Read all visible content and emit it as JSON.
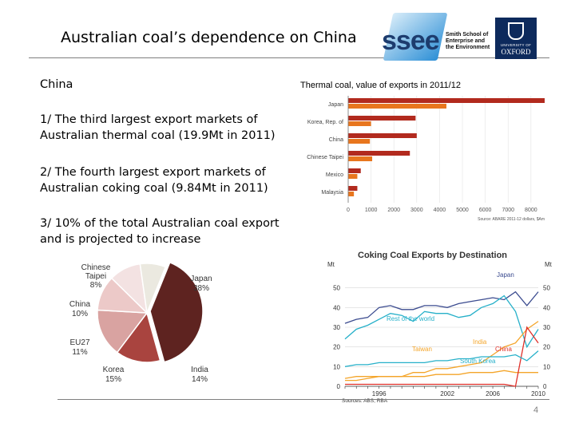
{
  "slide": {
    "title": "Australian coal’s dependence on China",
    "heading": "China",
    "point1": "1/ The third largest export markets of Australian thermal coal (19.9Mt in 2011)",
    "point2": "2/ The fourth largest export markets of Australian coking coal (9.84Mt in 2011)",
    "point3": "3/ 10% of the total Australian coal export and is projected to increase",
    "page_number": "4"
  },
  "logos": {
    "ssee_word": "ssee",
    "ssee_subtitle": "Smith School of Enterprise and the Environment",
    "oxford_top": "UNIVERSITY OF",
    "oxford_name": "OXFORD"
  },
  "colors": {
    "dark_red": "#b22a1e",
    "orange": "#e8761e",
    "maroon": "#5e2320",
    "pie_red": "#a9443f",
    "pie_pink": "#d9a3a1",
    "pie_light_pink": "#ecc9c8",
    "pie_blush": "#f3e2e2",
    "pie_cream": "#ebe9e0",
    "line_blue": "#3b4b8f",
    "line_teal": "#26b0c9",
    "line_orange": "#f4a52a",
    "line_red": "#e0302a"
  },
  "chart_data": [
    {
      "type": "bar",
      "title": "Thermal coal, value of exports in 2011/12",
      "categories": [
        "Japan",
        "Korea, Rep. of",
        "China",
        "Chinese Taipei",
        "Mexico",
        "Malaysia"
      ],
      "series": [
        {
          "values": [
            8600,
            2950,
            3000,
            2700,
            550,
            400
          ]
        },
        {
          "values": [
            4300,
            1000,
            950,
            1050,
            400,
            250
          ]
        }
      ],
      "xlim": [
        0,
        8600
      ],
      "xticks": [
        "0",
        "1000",
        "2000",
        "3000",
        "4000",
        "5000",
        "6000",
        "7000",
        "8000"
      ],
      "source": "Source: ABARE 2011-12 dollars, $Am"
    },
    {
      "type": "pie",
      "slices": [
        {
          "label": "Japan",
          "pct_label": "38%",
          "value": 38
        },
        {
          "label": "India",
          "pct_label": "14%",
          "value": 14
        },
        {
          "label": "Korea",
          "pct_label": "15%",
          "value": 15
        },
        {
          "label": "EU27",
          "pct_label": "11%",
          "value": 11
        },
        {
          "label": "China",
          "pct_label": "10%",
          "value": 10
        },
        {
          "label": "Chinese Taipei",
          "pct_label": "8%",
          "value": 8
        }
      ],
      "visible_labels": [
        "Chinese",
        "Taipei",
        "8%",
        "Japan",
        "38%",
        "China",
        "10%",
        "EU27",
        "11%",
        "Korea",
        "15%",
        "India",
        "14%"
      ]
    },
    {
      "type": "line",
      "title": "Coking Coal Exports by Destination",
      "ylabel_left": "Mt",
      "ylabel_right": "Mt",
      "ylim": [
        0,
        60
      ],
      "yticks": [
        "0",
        "10",
        "20",
        "30",
        "40",
        "50"
      ],
      "xticks": [
        "1996",
        "2002",
        "2006",
        "2010"
      ],
      "x": [
        1993,
        1994,
        1995,
        1996,
        1997,
        1998,
        1999,
        2000,
        2001,
        2002,
        2003,
        2004,
        2005,
        2006,
        2007,
        2008,
        2009,
        2010
      ],
      "series": [
        {
          "name": "Japan",
          "values": [
            32,
            34,
            35,
            40,
            41,
            39,
            39,
            41,
            41,
            40,
            42,
            43,
            44,
            45,
            44,
            48,
            41,
            48
          ]
        },
        {
          "name": "Rest of the world",
          "values": [
            24,
            29,
            31,
            34,
            37,
            36,
            33,
            38,
            37,
            37,
            35,
            36,
            40,
            42,
            46,
            38,
            20,
            29
          ]
        },
        {
          "name": "India",
          "values": [
            3,
            3,
            4,
            5,
            5,
            5,
            7,
            7,
            9,
            9,
            10,
            11,
            12,
            16,
            20,
            22,
            29,
            33
          ]
        },
        {
          "name": "Taiwan",
          "values": [
            4,
            5,
            5,
            5,
            5,
            5,
            5,
            5,
            6,
            6,
            6,
            7,
            7,
            7,
            8,
            7,
            7,
            7
          ]
        },
        {
          "name": "China",
          "values": [
            1,
            1,
            1,
            1,
            1,
            1,
            1,
            1,
            1,
            1,
            1,
            1,
            1,
            1,
            1,
            0,
            30,
            22
          ]
        },
        {
          "name": "South Korea",
          "values": [
            10,
            11,
            11,
            12,
            12,
            12,
            12,
            12,
            13,
            13,
            14,
            14,
            15,
            15,
            15,
            16,
            13,
            18
          ]
        }
      ],
      "labels_on_chart": [
        "Japan",
        "Rest of the world",
        "India",
        "Taiwan",
        "China",
        "South Korea"
      ],
      "source": "Sources: ABS; RBA"
    }
  ]
}
